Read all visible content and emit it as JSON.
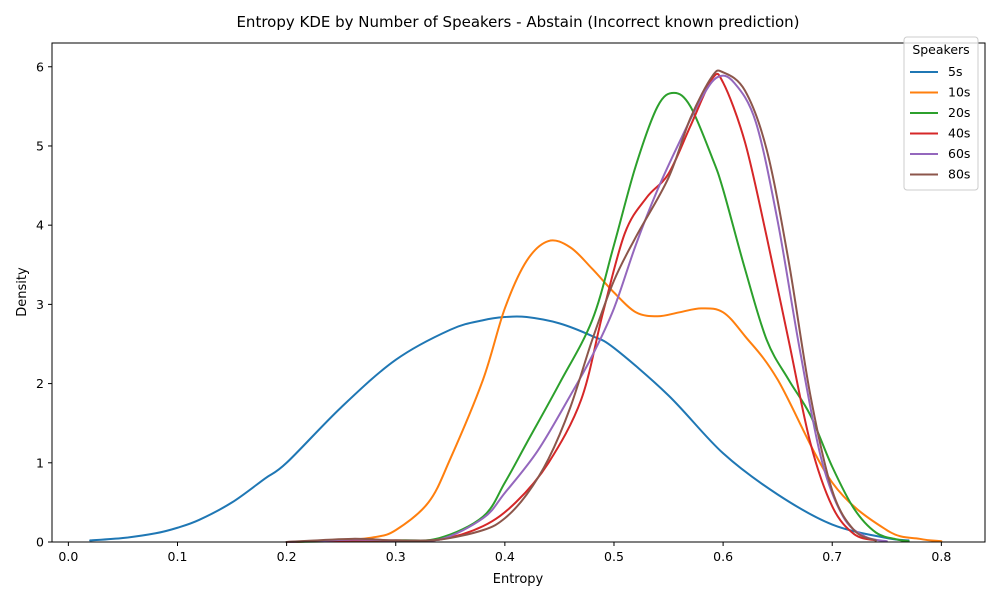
{
  "chart_data": {
    "type": "line",
    "title": "Entropy KDE by Number of Speakers - Abstain (Incorrect known prediction)",
    "xlabel": "Entropy",
    "ylabel": "Density",
    "xlim": [
      -0.015,
      0.84
    ],
    "ylim": [
      0,
      6.3
    ],
    "xticks": [
      0.0,
      0.1,
      0.2,
      0.3,
      0.4,
      0.5,
      0.6,
      0.7,
      0.8
    ],
    "xtick_labels": [
      "0.0",
      "0.1",
      "0.2",
      "0.3",
      "0.4",
      "0.5",
      "0.6",
      "0.7",
      "0.8"
    ],
    "yticks": [
      0,
      1,
      2,
      3,
      4,
      5,
      6
    ],
    "ytick_labels": [
      "0",
      "1",
      "2",
      "3",
      "4",
      "5",
      "6"
    ],
    "grid": false,
    "legend": {
      "title": "Speakers",
      "position": "top-right"
    },
    "series": [
      {
        "name": "5s",
        "color": "#1f77b4",
        "points": [
          [
            0.02,
            0.02
          ],
          [
            0.05,
            0.05
          ],
          [
            0.08,
            0.11
          ],
          [
            0.1,
            0.18
          ],
          [
            0.12,
            0.28
          ],
          [
            0.15,
            0.5
          ],
          [
            0.18,
            0.8
          ],
          [
            0.2,
            1.0
          ],
          [
            0.25,
            1.7
          ],
          [
            0.3,
            2.3
          ],
          [
            0.35,
            2.68
          ],
          [
            0.38,
            2.8
          ],
          [
            0.4,
            2.84
          ],
          [
            0.42,
            2.84
          ],
          [
            0.45,
            2.76
          ],
          [
            0.48,
            2.6
          ],
          [
            0.5,
            2.45
          ],
          [
            0.55,
            1.85
          ],
          [
            0.6,
            1.12
          ],
          [
            0.65,
            0.6
          ],
          [
            0.7,
            0.22
          ],
          [
            0.75,
            0.05
          ],
          [
            0.77,
            0.02
          ]
        ]
      },
      {
        "name": "10s",
        "color": "#ff7f0e",
        "points": [
          [
            0.2,
            0.0
          ],
          [
            0.25,
            0.02
          ],
          [
            0.28,
            0.06
          ],
          [
            0.3,
            0.15
          ],
          [
            0.33,
            0.5
          ],
          [
            0.35,
            1.05
          ],
          [
            0.38,
            2.05
          ],
          [
            0.4,
            2.95
          ],
          [
            0.42,
            3.55
          ],
          [
            0.44,
            3.8
          ],
          [
            0.46,
            3.72
          ],
          [
            0.48,
            3.45
          ],
          [
            0.5,
            3.15
          ],
          [
            0.52,
            2.9
          ],
          [
            0.54,
            2.85
          ],
          [
            0.56,
            2.9
          ],
          [
            0.58,
            2.95
          ],
          [
            0.6,
            2.9
          ],
          [
            0.62,
            2.6
          ],
          [
            0.65,
            2.05
          ],
          [
            0.7,
            0.75
          ],
          [
            0.75,
            0.15
          ],
          [
            0.78,
            0.04
          ],
          [
            0.8,
            0.01
          ]
        ]
      },
      {
        "name": "20s",
        "color": "#2ca02c",
        "points": [
          [
            0.2,
            0.0
          ],
          [
            0.3,
            0.02
          ],
          [
            0.34,
            0.05
          ],
          [
            0.38,
            0.32
          ],
          [
            0.4,
            0.75
          ],
          [
            0.42,
            1.25
          ],
          [
            0.45,
            2.0
          ],
          [
            0.48,
            2.8
          ],
          [
            0.5,
            3.75
          ],
          [
            0.52,
            4.75
          ],
          [
            0.54,
            5.5
          ],
          [
            0.555,
            5.67
          ],
          [
            0.57,
            5.5
          ],
          [
            0.59,
            4.85
          ],
          [
            0.6,
            4.45
          ],
          [
            0.62,
            3.45
          ],
          [
            0.64,
            2.55
          ],
          [
            0.66,
            2.05
          ],
          [
            0.68,
            1.6
          ],
          [
            0.7,
            0.95
          ],
          [
            0.72,
            0.42
          ],
          [
            0.74,
            0.12
          ],
          [
            0.76,
            0.03
          ],
          [
            0.77,
            0.01
          ]
        ]
      },
      {
        "name": "40s",
        "color": "#d62728",
        "points": [
          [
            0.2,
            0.0
          ],
          [
            0.26,
            0.02
          ],
          [
            0.3,
            0.02
          ],
          [
            0.34,
            0.03
          ],
          [
            0.38,
            0.2
          ],
          [
            0.41,
            0.5
          ],
          [
            0.44,
            1.0
          ],
          [
            0.47,
            1.8
          ],
          [
            0.49,
            2.9
          ],
          [
            0.51,
            3.9
          ],
          [
            0.53,
            4.35
          ],
          [
            0.55,
            4.65
          ],
          [
            0.57,
            5.25
          ],
          [
            0.59,
            5.85
          ],
          [
            0.6,
            5.8
          ],
          [
            0.62,
            5.05
          ],
          [
            0.64,
            3.85
          ],
          [
            0.66,
            2.55
          ],
          [
            0.68,
            1.25
          ],
          [
            0.7,
            0.45
          ],
          [
            0.72,
            0.1
          ],
          [
            0.74,
            0.02
          ]
        ]
      },
      {
        "name": "60s",
        "color": "#9467bd",
        "points": [
          [
            0.2,
            0.0
          ],
          [
            0.26,
            0.03
          ],
          [
            0.3,
            0.02
          ],
          [
            0.34,
            0.03
          ],
          [
            0.38,
            0.3
          ],
          [
            0.4,
            0.62
          ],
          [
            0.43,
            1.15
          ],
          [
            0.46,
            1.85
          ],
          [
            0.48,
            2.35
          ],
          [
            0.5,
            2.95
          ],
          [
            0.52,
            3.75
          ],
          [
            0.54,
            4.45
          ],
          [
            0.56,
            5.05
          ],
          [
            0.58,
            5.6
          ],
          [
            0.595,
            5.87
          ],
          [
            0.61,
            5.8
          ],
          [
            0.63,
            5.3
          ],
          [
            0.65,
            4.05
          ],
          [
            0.67,
            2.45
          ],
          [
            0.69,
            1.05
          ],
          [
            0.71,
            0.32
          ],
          [
            0.73,
            0.07
          ],
          [
            0.75,
            0.01
          ]
        ]
      },
      {
        "name": "80s",
        "color": "#8c564b",
        "points": [
          [
            0.2,
            0.0
          ],
          [
            0.26,
            0.04
          ],
          [
            0.3,
            0.02
          ],
          [
            0.34,
            0.03
          ],
          [
            0.38,
            0.15
          ],
          [
            0.4,
            0.3
          ],
          [
            0.42,
            0.6
          ],
          [
            0.44,
            1.05
          ],
          [
            0.46,
            1.7
          ],
          [
            0.48,
            2.55
          ],
          [
            0.5,
            3.3
          ],
          [
            0.52,
            3.85
          ],
          [
            0.55,
            4.6
          ],
          [
            0.57,
            5.35
          ],
          [
            0.59,
            5.88
          ],
          [
            0.6,
            5.93
          ],
          [
            0.62,
            5.7
          ],
          [
            0.64,
            4.95
          ],
          [
            0.66,
            3.55
          ],
          [
            0.68,
            1.85
          ],
          [
            0.7,
            0.65
          ],
          [
            0.72,
            0.15
          ],
          [
            0.74,
            0.02
          ]
        ]
      }
    ]
  }
}
